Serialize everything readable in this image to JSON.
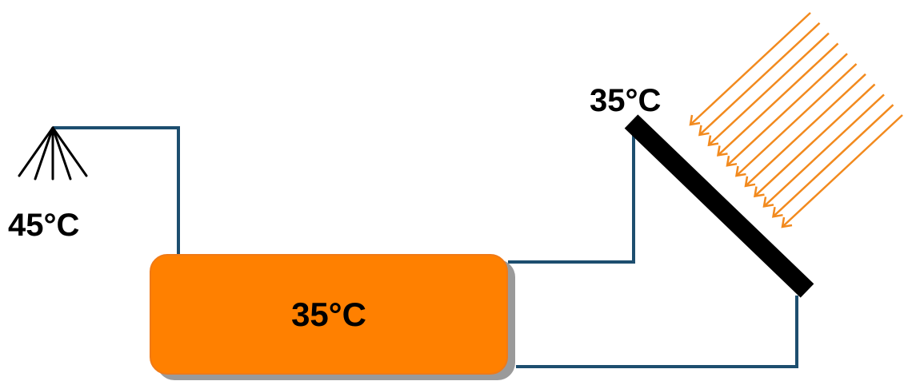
{
  "labels": {
    "shower_temp": "45°C",
    "collector_temp": "35°C",
    "tank_temp": "35°C"
  },
  "colors": {
    "pipe": "#1d4e6f",
    "tank_fill": "#ff8000",
    "tank_border": "#f07a16",
    "sun_rays": "#f28a1e",
    "collector_panel": "#000000",
    "shower_spray": "#000000"
  },
  "icons": {
    "shower": "shower-head-icon",
    "sun_rays": "sun-rays-icon",
    "collector": "solar-collector-icon"
  }
}
